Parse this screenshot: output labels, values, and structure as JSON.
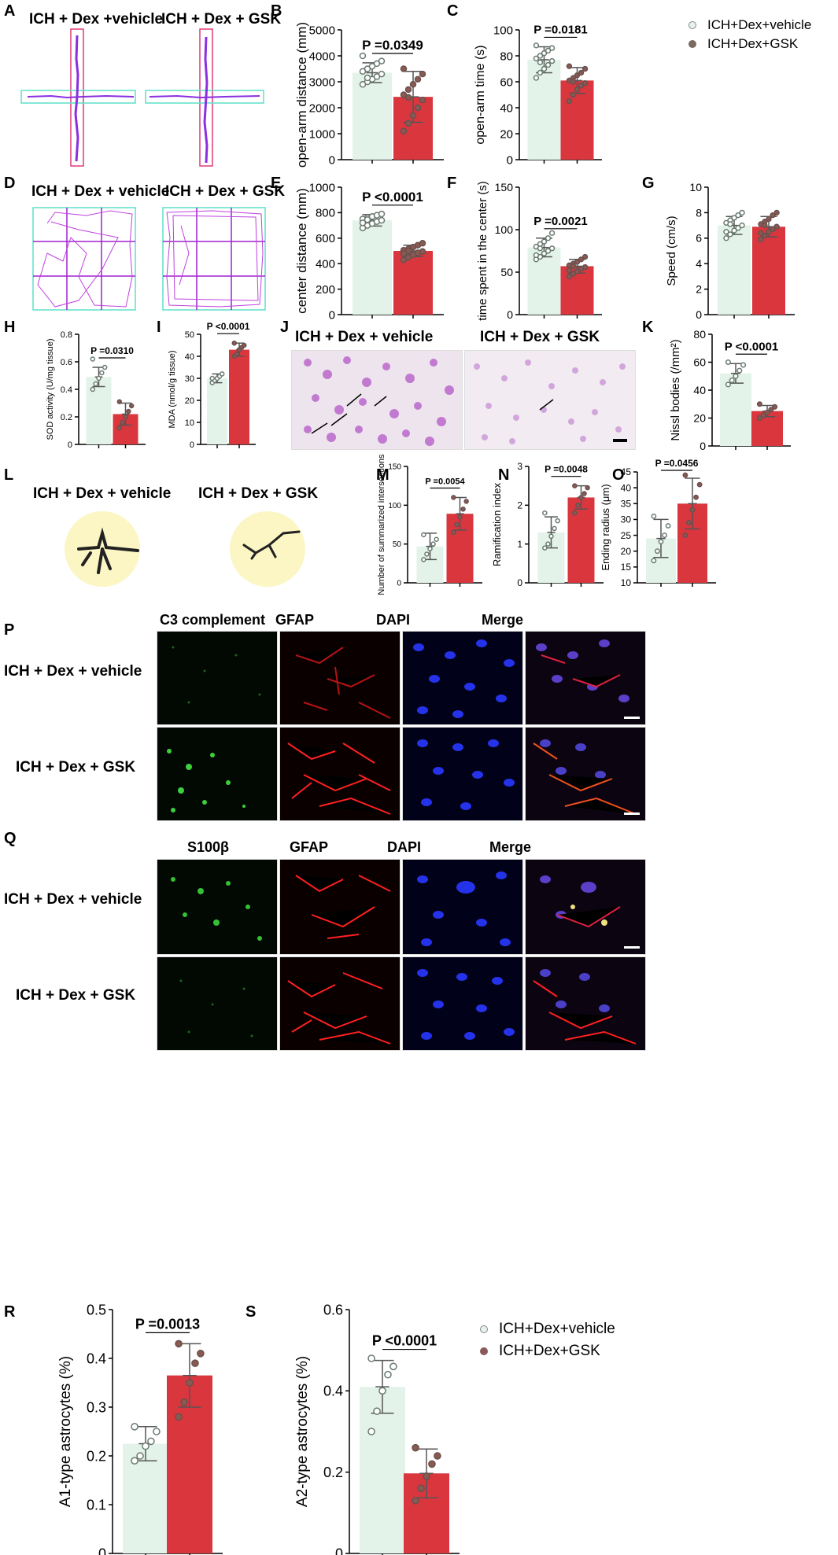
{
  "panels": {
    "A": "A",
    "B": "B",
    "C": "C",
    "D": "D",
    "E": "E",
    "F": "F",
    "G": "G",
    "H": "H",
    "I": "I",
    "J": "J",
    "K": "K",
    "L": "L",
    "M": "M",
    "N": "N",
    "O": "O",
    "P": "P",
    "Q": "Q",
    "R": "R",
    "S": "S"
  },
  "groups": {
    "vehicle_spaced": "ICH + Dex +vehicle",
    "vehicle": "ICH + Dex + vehicle",
    "gsk": "ICH + Dex + GSK"
  },
  "legend": {
    "vehicle": "ICH+Dex+vehicle",
    "gsk": "ICH+Dex+GSK"
  },
  "stains_p": [
    "C3 complement",
    "GFAP",
    "DAPI",
    "Merge"
  ],
  "stains_q": [
    "S100β",
    "GFAP",
    "DAPI",
    "Merge"
  ],
  "colors": {
    "vehicle_bar": "#e3f3ea",
    "gsk_bar": "#d9363e",
    "maze_arm": "#5de0c8",
    "maze_closed": "#e03c78",
    "track": "#b03cd8",
    "grid": "#a020d0"
  },
  "chart_data": [
    {
      "id": "B",
      "type": "bar",
      "ylabel": "open-arm distance (mm)",
      "ylim": [
        0,
        5000
      ],
      "yticks": [
        0,
        1000,
        2000,
        3000,
        4000,
        5000
      ],
      "p": "P =0.0349",
      "categories": [
        "ICH+Dex+vehicle",
        "ICH+Dex+GSK"
      ],
      "values": [
        3350,
        2420
      ],
      "err": [
        380,
        980
      ],
      "points": [
        [
          2900,
          3000,
          3100,
          3200,
          3300,
          3400,
          3500,
          3600,
          3700,
          3800,
          4000,
          3150
        ],
        [
          1100,
          1400,
          1700,
          2000,
          2300,
          2500,
          2700,
          2900,
          3100,
          3300,
          3500,
          2400
        ]
      ]
    },
    {
      "id": "C",
      "type": "bar",
      "ylabel": "open-arm time (s)",
      "ylim": [
        0,
        100
      ],
      "yticks": [
        0,
        20,
        40,
        60,
        80,
        100
      ],
      "p": "P =0.0181",
      "categories": [
        "ICH+Dex+vehicle",
        "ICH+Dex+GSK"
      ],
      "values": [
        77,
        61
      ],
      "err": [
        10,
        10
      ],
      "points": [
        [
          63,
          67,
          70,
          73,
          76,
          78,
          80,
          82,
          84,
          86,
          88,
          75
        ],
        [
          45,
          50,
          54,
          57,
          59,
          61,
          63,
          65,
          67,
          70,
          72,
          60
        ]
      ]
    },
    {
      "id": "E",
      "type": "bar",
      "ylabel": "center distance (mm)",
      "ylim": [
        0,
        1000
      ],
      "yticks": [
        0,
        200,
        400,
        600,
        800,
        1000
      ],
      "p": "P <0.0001",
      "categories": [
        "ICH+Dex+vehicle",
        "ICH+Dex+GSK"
      ],
      "values": [
        740,
        500
      ],
      "err": [
        45,
        45
      ],
      "points": [
        [
          680,
          700,
          715,
          730,
          740,
          750,
          760,
          770,
          780,
          790,
          720,
          745
        ],
        [
          430,
          450,
          470,
          485,
          495,
          505,
          515,
          530,
          545,
          560,
          480,
          500
        ]
      ]
    },
    {
      "id": "F",
      "type": "bar",
      "ylabel": "time spent in the center (s)",
      "ylim": [
        0,
        150
      ],
      "yticks": [
        0,
        50,
        100,
        150
      ],
      "p": "P =0.0021",
      "categories": [
        "ICH+Dex+vehicle",
        "ICH+Dex+GSK"
      ],
      "values": [
        79,
        57
      ],
      "err": [
        11,
        8
      ],
      "points": [
        [
          65,
          68,
          72,
          75,
          78,
          80,
          83,
          86,
          90,
          96,
          70,
          78
        ],
        [
          45,
          48,
          51,
          54,
          56,
          58,
          60,
          62,
          65,
          68,
          52,
          57
        ]
      ]
    },
    {
      "id": "G",
      "type": "bar",
      "ylabel": "Speed (cm/s)",
      "ylim": [
        0,
        10
      ],
      "yticks": [
        0,
        2,
        4,
        6,
        8,
        10
      ],
      "p": "",
      "categories": [
        "ICH+Dex+vehicle",
        "ICH+Dex+GSK"
      ],
      "values": [
        7.0,
        6.9
      ],
      "err": [
        0.7,
        0.8
      ],
      "points": [
        [
          6.0,
          6.3,
          6.6,
          6.8,
          7.0,
          7.2,
          7.4,
          7.6,
          7.8,
          8.0,
          6.5,
          7.1
        ],
        [
          5.9,
          6.2,
          6.5,
          6.7,
          6.9,
          7.1,
          7.3,
          7.5,
          7.8,
          8.0,
          6.4,
          7.0
        ]
      ]
    },
    {
      "id": "H",
      "type": "bar",
      "ylabel": "SOD activity (U/mg tissue)",
      "ylim": [
        0,
        0.8
      ],
      "yticks": [
        0,
        0.2,
        0.4,
        0.6,
        0.8
      ],
      "p": "P =0.0310",
      "categories": [
        "ICH+Dex+vehicle",
        "ICH+Dex+GSK"
      ],
      "values": [
        0.49,
        0.22
      ],
      "err": [
        0.07,
        0.08
      ],
      "points": [
        [
          0.4,
          0.44,
          0.48,
          0.52,
          0.56,
          0.62
        ],
        [
          0.12,
          0.16,
          0.2,
          0.24,
          0.28,
          0.31
        ]
      ]
    },
    {
      "id": "I",
      "type": "bar",
      "ylabel": "MDA (nmol/g tissue)",
      "ylim": [
        0,
        50
      ],
      "yticks": [
        0,
        10,
        20,
        30,
        40,
        50
      ],
      "p": "P <0.0001",
      "categories": [
        "ICH+Dex+vehicle",
        "ICH+Dex+GSK"
      ],
      "values": [
        30,
        43
      ],
      "err": [
        2,
        3
      ],
      "points": [
        [
          28,
          29,
          30,
          31,
          32,
          30
        ],
        [
          40,
          41,
          43,
          44,
          45,
          46
        ]
      ]
    },
    {
      "id": "K",
      "type": "bar",
      "ylabel": "Nissl bodies (/mm²)",
      "ylim": [
        0,
        80
      ],
      "yticks": [
        0,
        20,
        40,
        60,
        80
      ],
      "p": "P <0.0001",
      "categories": [
        "ICH+Dex+vehicle",
        "ICH+Dex+GSK"
      ],
      "values": [
        52,
        25
      ],
      "err": [
        7,
        4
      ],
      "points": [
        [
          44,
          47,
          50,
          54,
          58,
          60
        ],
        [
          20,
          22,
          24,
          26,
          28,
          30
        ]
      ]
    },
    {
      "id": "M",
      "type": "bar",
      "ylabel": "Number of summarized intersections",
      "ylim": [
        0,
        150
      ],
      "yticks": [
        0,
        50,
        100,
        150
      ],
      "p": "P =0.0054",
      "categories": [
        "ICH+Dex+vehicle",
        "ICH+Dex+GSK"
      ],
      "values": [
        47,
        89
      ],
      "err": [
        17,
        21
      ],
      "points": [
        [
          30,
          37,
          44,
          50,
          56,
          62
        ],
        [
          65,
          75,
          85,
          95,
          105,
          110
        ]
      ]
    },
    {
      "id": "N",
      "type": "bar",
      "ylabel": "Ramification index",
      "ylim": [
        0,
        3
      ],
      "yticks": [
        0,
        1,
        2,
        3
      ],
      "p": "P =0.0048",
      "categories": [
        "ICH+Dex+vehicle",
        "ICH+Dex+GSK"
      ],
      "values": [
        1.3,
        2.2
      ],
      "err": [
        0.4,
        0.3
      ],
      "points": [
        [
          0.9,
          1.0,
          1.2,
          1.4,
          1.6,
          1.8
        ],
        [
          1.8,
          2.0,
          2.2,
          2.3,
          2.45,
          2.5
        ]
      ]
    },
    {
      "id": "O",
      "type": "bar",
      "ylabel": "Ending radius (μm)",
      "ylim": [
        10,
        45
      ],
      "yticks": [
        10,
        15,
        20,
        25,
        30,
        35,
        40,
        45
      ],
      "p": "P =0.0456",
      "categories": [
        "ICH+Dex+vehicle",
        "ICH+Dex+GSK"
      ],
      "values": [
        24,
        35
      ],
      "err": [
        6,
        8
      ],
      "points": [
        [
          17,
          20,
          23,
          25,
          28,
          31
        ],
        [
          25,
          29,
          33,
          37,
          41,
          44
        ]
      ]
    },
    {
      "id": "R",
      "type": "bar",
      "ylabel": "A1-type  astrocytes  (%)",
      "ylim": [
        0,
        0.5
      ],
      "yticks": [
        0,
        0.1,
        0.2,
        0.3,
        0.4,
        0.5
      ],
      "p": "P =0.0013",
      "categories": [
        "ICH+Dex+vehicle",
        "ICH+Dex+GSK"
      ],
      "values": [
        0.225,
        0.365
      ],
      "err": [
        0.035,
        0.065
      ],
      "points": [
        [
          0.19,
          0.2,
          0.22,
          0.23,
          0.25,
          0.26
        ],
        [
          0.28,
          0.31,
          0.35,
          0.39,
          0.41,
          0.43
        ]
      ]
    },
    {
      "id": "S",
      "type": "bar",
      "ylabel": "A2-type  astrocytes  (%)",
      "ylim": [
        0,
        0.6
      ],
      "yticks": [
        0,
        0.2,
        0.4,
        0.6
      ],
      "p": "P <0.0001",
      "categories": [
        "ICH+Dex+vehicle",
        "ICH+Dex+GSK"
      ],
      "values": [
        0.41,
        0.197
      ],
      "err": [
        0.065,
        0.06
      ],
      "points": [
        [
          0.3,
          0.35,
          0.4,
          0.44,
          0.46,
          0.48
        ],
        [
          0.13,
          0.16,
          0.19,
          0.22,
          0.24,
          0.26
        ]
      ]
    }
  ]
}
